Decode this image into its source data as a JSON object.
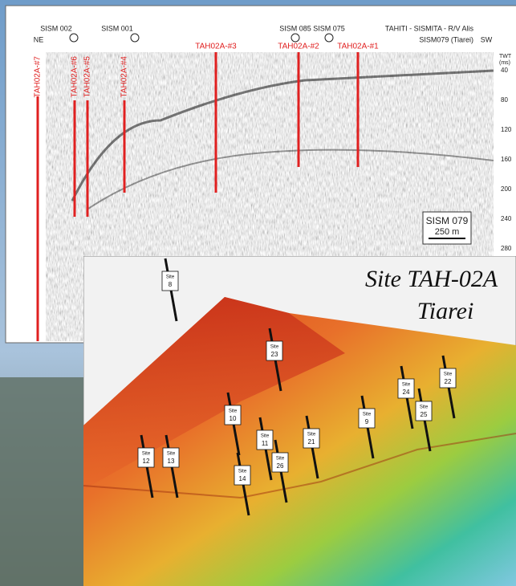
{
  "profile": {
    "shotpoints": [
      "SISM 002",
      "SISM 001",
      "SISM 085",
      "SISM 075"
    ],
    "title": "TAHITI - SISMITA - R/V Alis",
    "subtitle": "SISM079 (Tiarei)",
    "left_dir": "NE",
    "right_dir": "SW",
    "axis_title": "TWT",
    "axis_unit": "(ms)",
    "twt_ticks": [
      40,
      80,
      120,
      160,
      200,
      240,
      280
    ],
    "holes": [
      "TAH02A-#7",
      "TAH02A-#6",
      "TAH02A-#5",
      "TAH02A-#4",
      "TAH02A-#3",
      "TAH02A-#2",
      "TAH02A-#1"
    ],
    "profile_name": "SISM 079",
    "scale_bar": "250 m"
  },
  "map": {
    "title": "Site TAH-02A",
    "subtitle": "Tiarei",
    "site_word": "Site",
    "sites": [
      "8",
      "23",
      "10",
      "11",
      "12",
      "13",
      "14",
      "26",
      "21",
      "9",
      "24",
      "25",
      "22"
    ]
  }
}
